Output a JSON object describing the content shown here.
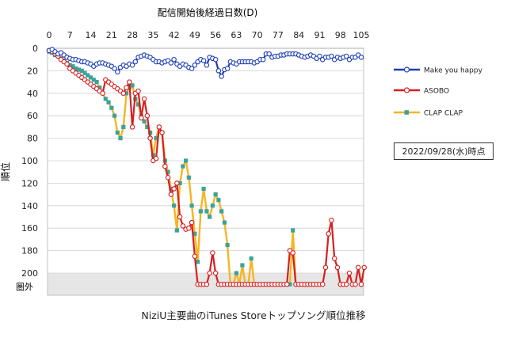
{
  "chart_data": {
    "type": "line",
    "title": "NiziU主要曲のiTunes Storeトップソング順位推移",
    "xlabel": "配信開始後経過日数(D)",
    "ylabel": "順位",
    "x_ticks": [
      0,
      7,
      14,
      21,
      28,
      35,
      42,
      49,
      56,
      63,
      70,
      77,
      84,
      91,
      98,
      105
    ],
    "y_ticks": [
      0,
      20,
      40,
      60,
      80,
      100,
      120,
      140,
      160,
      180,
      200
    ],
    "out_label": "圏外",
    "out_value": 210,
    "xlim": [
      0,
      105
    ],
    "ylim": [
      0,
      220
    ],
    "y_inverted": true,
    "grid": "horizontal",
    "legend_position": "right",
    "annotation": "2022/09/28(水)時点",
    "series": [
      {
        "name": "Make you happy",
        "color": "#1f3fb5",
        "marker": "circle",
        "values": [
          2,
          1,
          3,
          5,
          4,
          6,
          8,
          9,
          10,
          10,
          11,
          12,
          12,
          13,
          14,
          16,
          14,
          13,
          13,
          14,
          15,
          16,
          18,
          21,
          17,
          15,
          16,
          14,
          15,
          12,
          8,
          7,
          6,
          7,
          8,
          10,
          12,
          12,
          13,
          12,
          11,
          13,
          10,
          14,
          16,
          14,
          15,
          17,
          18,
          15,
          12,
          10,
          11,
          15,
          8,
          9,
          10,
          20,
          25,
          19,
          18,
          12,
          13,
          14,
          12,
          12,
          12,
          12,
          12,
          13,
          12,
          10,
          10,
          5,
          5,
          8,
          7,
          7,
          6,
          6,
          5,
          5,
          5,
          5,
          6,
          7,
          8,
          7,
          6,
          7,
          9,
          7,
          10,
          8,
          8,
          7,
          10,
          8,
          9,
          8,
          7,
          10,
          8,
          8,
          6,
          8
        ]
      },
      {
        "name": "ASOBO",
        "color": "#d62020",
        "marker": "circle",
        "values": [
          2,
          3,
          5,
          7,
          10,
          12,
          14,
          18,
          20,
          22,
          24,
          26,
          28,
          30,
          32,
          34,
          36,
          38,
          40,
          28,
          30,
          32,
          34,
          36,
          38,
          40,
          35,
          30,
          70,
          40,
          38,
          62,
          45,
          60,
          80,
          100,
          98,
          70,
          75,
          105,
          115,
          130,
          125,
          120,
          150,
          158,
          161,
          160,
          155,
          185,
          210,
          210,
          210,
          210,
          200,
          182,
          200,
          210,
          210,
          210,
          210,
          210,
          210,
          210,
          210,
          210,
          210,
          210,
          210,
          210,
          210,
          210,
          210,
          210,
          210,
          210,
          210,
          210,
          210,
          210,
          210,
          180,
          182,
          210,
          210,
          210,
          210,
          210,
          210,
          210,
          210,
          210,
          210,
          195,
          165,
          153,
          187,
          195,
          210,
          210,
          210,
          200,
          210,
          210,
          195,
          210,
          195
        ]
      },
      {
        "name": "CLAP CLAP",
        "color": "#f5b522",
        "marker": "square",
        "marker_fill": "#3aa39a",
        "values": [
          3,
          4,
          6,
          7,
          9,
          11,
          13,
          15,
          16,
          18,
          19,
          20,
          22,
          24,
          26,
          28,
          30,
          35,
          40,
          45,
          48,
          53,
          60,
          75,
          80,
          70,
          40,
          35,
          33,
          45,
          50,
          60,
          65,
          70,
          75,
          95,
          80,
          70,
          75,
          100,
          110,
          125,
          140,
          162,
          120,
          105,
          100,
          115,
          140,
          165,
          190,
          145,
          125,
          145,
          150,
          140,
          130,
          135,
          145,
          155,
          175,
          210,
          210,
          200,
          210,
          193,
          210,
          210,
          187,
          210,
          210,
          210,
          210,
          210,
          210,
          210,
          210,
          210,
          210,
          210,
          210,
          210,
          162,
          210,
          210,
          210
        ]
      }
    ]
  }
}
